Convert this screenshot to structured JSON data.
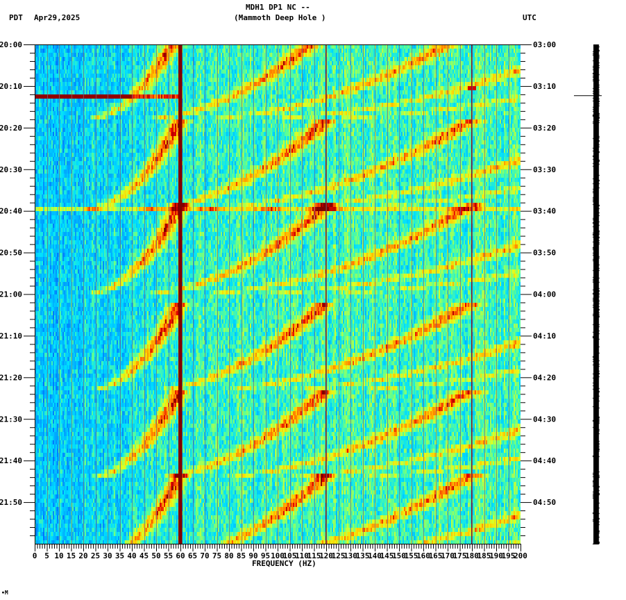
{
  "header": {
    "station": "MDH1 DP1 NC --",
    "site": "(Mammoth Deep Hole )",
    "left_tz": "PDT",
    "date": "Apr29,2025",
    "right_tz": "UTC"
  },
  "footer_mark": "∙M",
  "chart_data": {
    "type": "heatmap",
    "title": "MDH1 DP1 NC -- (Mammoth Deep Hole )",
    "subtitle": "Apr29,2025",
    "xlabel": "FREQUENCY (HZ)",
    "ylabel_left": "PDT",
    "ylabel_right": "UTC",
    "xlim": [
      0,
      200
    ],
    "x_ticks": [
      0,
      5,
      10,
      15,
      20,
      25,
      30,
      35,
      40,
      45,
      50,
      55,
      60,
      65,
      70,
      75,
      80,
      85,
      90,
      95,
      100,
      105,
      110,
      115,
      120,
      125,
      130,
      135,
      140,
      145,
      150,
      155,
      160,
      165,
      170,
      175,
      180,
      185,
      190,
      195,
      200
    ],
    "x_minor_step": 1,
    "y_ticks_left": [
      "20:00",
      "20:10",
      "20:20",
      "20:30",
      "20:40",
      "20:50",
      "21:00",
      "21:10",
      "21:20",
      "21:30",
      "21:40",
      "21:50"
    ],
    "y_ticks_right": [
      "03:00",
      "03:10",
      "03:20",
      "03:30",
      "03:40",
      "03:50",
      "04:00",
      "04:10",
      "04:20",
      "04:30",
      "04:40",
      "04:50"
    ],
    "y_minor_step_minutes": 2,
    "time_span_minutes": 120,
    "colormap": [
      "#0000c8",
      "#0050ff",
      "#00a0ff",
      "#00e0ff",
      "#60ff90",
      "#e0ff20",
      "#ffd000",
      "#ff7000",
      "#e00000",
      "#800000"
    ],
    "persistent_lines_hz": [
      {
        "freq": 60,
        "width_hz": 1.6,
        "color": "#800000"
      },
      {
        "freq": 120,
        "width_hz": 0.4,
        "color": "#802020"
      },
      {
        "freq": 180,
        "width_hz": 0.4,
        "color": "#802020"
      }
    ],
    "broadband_event": {
      "time_min": 12.3,
      "freq_range": [
        0,
        60
      ],
      "color": "#800000"
    },
    "narrow_event": {
      "time_min": 10.3,
      "freq": 180
    },
    "chirp_cycles": {
      "cycle_end_minutes": [
        18.0,
        39.7,
        60.0,
        83.5,
        104.5,
        125.0
      ],
      "cycle_length_minutes": 21.5,
      "fundamental_start_hz": 21,
      "fundamental_end_hz": 60,
      "harmonics": [
        1,
        2,
        3,
        4,
        5
      ]
    },
    "grid_every_hz": 5
  },
  "seismogram_trace": {
    "marker_time_min": 12.3
  }
}
